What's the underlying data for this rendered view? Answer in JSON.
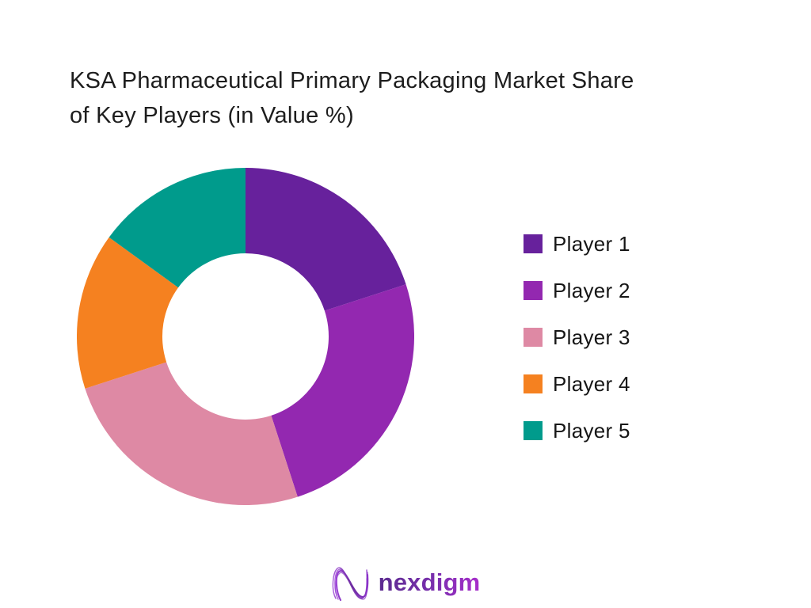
{
  "title_lines": [
    "KSA Pharmaceutical Primary Packaging Market Share",
    "of Key Players (in Value %)"
  ],
  "chart_data": {
    "type": "pie",
    "subtype": "donut",
    "title": "KSA Pharmaceutical Primary Packaging Market Share of Key Players (in Value %)",
    "categories": [
      "Player 1",
      "Player 2",
      "Player 3",
      "Player 4",
      "Player 5"
    ],
    "values": [
      20,
      25,
      25,
      15,
      15
    ],
    "unit": "%",
    "colors": [
      "#67219C",
      "#9328B0",
      "#DE89A4",
      "#F58120",
      "#009B8C"
    ],
    "start_angle_deg": 0,
    "direction": "clockwise",
    "inner_radius_ratio": 0.49,
    "legend_position": "right",
    "data_labels": false,
    "title_color": "#1d1d1d",
    "background": "#ffffff"
  },
  "footer": {
    "logo_text": "nexdigm",
    "logo_mark": "nexdigm-n-waves-icon"
  }
}
